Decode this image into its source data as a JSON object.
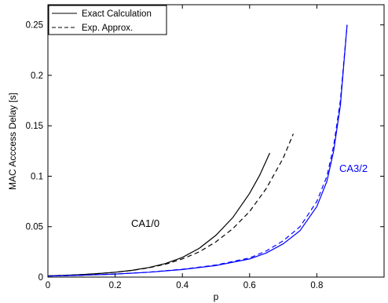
{
  "chart_data": {
    "type": "line",
    "xlabel": "p",
    "ylabel": "MAC Acccess Delay [s]",
    "xlim": [
      0,
      1
    ],
    "ylim": [
      0,
      0.27
    ],
    "xticks": [
      "0",
      "0.2",
      "0.4",
      "0.6",
      "0.8"
    ],
    "xtick_values": [
      0,
      0.2,
      0.4,
      0.6,
      0.8
    ],
    "yticks": [
      "0",
      "0.05",
      "0.1",
      "0.15",
      "0.2",
      "0.25"
    ],
    "ytick_values": [
      0,
      0.05,
      0.1,
      0.15,
      0.2,
      0.25
    ],
    "grid": false,
    "legend": {
      "position": "top-left",
      "entries": [
        "Exact Calculation",
        "Exp. Approx."
      ]
    },
    "annotations": [
      {
        "text": "CA1/0",
        "x": 0.4,
        "y": 0.05,
        "color": "#000000"
      },
      {
        "text": "CA3/2",
        "x": 0.94,
        "y": 0.105,
        "color": "#0000ff"
      }
    ],
    "series": [
      {
        "name": "Exact Calculation",
        "group": "CA1/0",
        "color": "#000000",
        "dash": "solid",
        "x": [
          0,
          0.05,
          0.1,
          0.15,
          0.2,
          0.25,
          0.3,
          0.35,
          0.4,
          0.45,
          0.5,
          0.55,
          0.6,
          0.63,
          0.66
        ],
        "y": [
          0.0012,
          0.0018,
          0.0025,
          0.0035,
          0.0048,
          0.0067,
          0.0095,
          0.0135,
          0.0195,
          0.0285,
          0.0415,
          0.059,
          0.083,
          0.101,
          0.123
        ]
      },
      {
        "name": "Exp. Approx.",
        "group": "CA1/0",
        "color": "#000000",
        "dash": "dashed",
        "x": [
          0,
          0.05,
          0.1,
          0.15,
          0.2,
          0.25,
          0.3,
          0.35,
          0.4,
          0.45,
          0.5,
          0.55,
          0.6,
          0.65,
          0.7,
          0.73
        ],
        "y": [
          0.0012,
          0.0018,
          0.0025,
          0.0035,
          0.0048,
          0.0066,
          0.0092,
          0.0128,
          0.018,
          0.025,
          0.035,
          0.048,
          0.065,
          0.088,
          0.118,
          0.142
        ]
      },
      {
        "name": "Exact Calculation",
        "group": "CA3/2",
        "color": "#0000ff",
        "dash": "solid",
        "x": [
          0,
          0.1,
          0.2,
          0.3,
          0.4,
          0.5,
          0.6,
          0.65,
          0.7,
          0.75,
          0.8,
          0.83,
          0.85,
          0.87,
          0.89
        ],
        "y": [
          0.001,
          0.0018,
          0.003,
          0.0048,
          0.0075,
          0.0115,
          0.018,
          0.024,
          0.033,
          0.046,
          0.07,
          0.095,
          0.125,
          0.17,
          0.25
        ]
      },
      {
        "name": "Exp. Approx.",
        "group": "CA3/2",
        "color": "#0000ff",
        "dash": "dashed",
        "x": [
          0,
          0.1,
          0.2,
          0.3,
          0.4,
          0.5,
          0.6,
          0.65,
          0.7,
          0.75,
          0.8,
          0.83,
          0.85,
          0.87,
          0.89
        ],
        "y": [
          0.001,
          0.0018,
          0.003,
          0.0049,
          0.0078,
          0.012,
          0.019,
          0.026,
          0.036,
          0.05,
          0.075,
          0.1,
          0.13,
          0.175,
          0.25
        ]
      }
    ]
  }
}
